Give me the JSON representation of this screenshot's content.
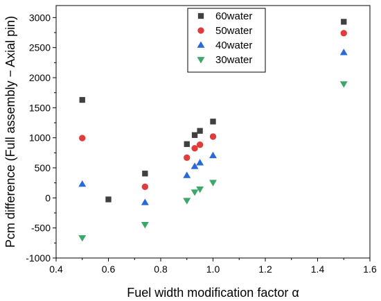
{
  "chart_data": {
    "type": "scatter",
    "xlabel": "Fuel width modification factor α",
    "ylabel": "Pcm difference (Full assembly − Axial pin)",
    "xlim": [
      0.4,
      1.6
    ],
    "ylim": [
      -1000,
      3200
    ],
    "x_ticks": [
      0.4,
      0.6,
      0.8,
      1.0,
      1.2,
      1.4,
      1.6
    ],
    "x_tick_labels": [
      "0.4",
      "0.6",
      "0.8",
      "1.0",
      "1.2",
      "1.4",
      "1.6"
    ],
    "y_ticks": [
      -1000,
      -500,
      0,
      500,
      1000,
      1500,
      2000,
      2500,
      3000
    ],
    "y_tick_labels": [
      "-1000",
      "-500",
      "0",
      "500",
      "1000",
      "1500",
      "2000",
      "2500",
      "3000"
    ],
    "grid": false,
    "legend_position": "top-center",
    "series": [
      {
        "name": "60water",
        "marker": "square",
        "color": "#404040",
        "x": [
          0.5,
          0.6,
          0.74,
          0.9,
          0.93,
          0.95,
          1.0,
          1.5
        ],
        "y": [
          1630,
          -25,
          405,
          895,
          1045,
          1115,
          1270,
          2930
        ]
      },
      {
        "name": "50water",
        "marker": "circle",
        "color": "#e03c3c",
        "x": [
          0.5,
          0.74,
          0.9,
          0.93,
          0.95,
          1.0,
          1.5
        ],
        "y": [
          995,
          185,
          670,
          825,
          885,
          1020,
          2740
        ]
      },
      {
        "name": "40water",
        "marker": "triangle-up",
        "color": "#2a6ad8",
        "x": [
          0.5,
          0.74,
          0.9,
          0.93,
          0.95,
          1.0,
          1.5
        ],
        "y": [
          230,
          -75,
          375,
          525,
          585,
          705,
          2420
        ]
      },
      {
        "name": "30water",
        "marker": "triangle-down",
        "color": "#3aa86a",
        "x": [
          0.5,
          0.74,
          0.9,
          0.93,
          0.95,
          1.0,
          1.5
        ],
        "y": [
          -665,
          -445,
          -45,
          95,
          145,
          255,
          1895
        ]
      }
    ]
  }
}
